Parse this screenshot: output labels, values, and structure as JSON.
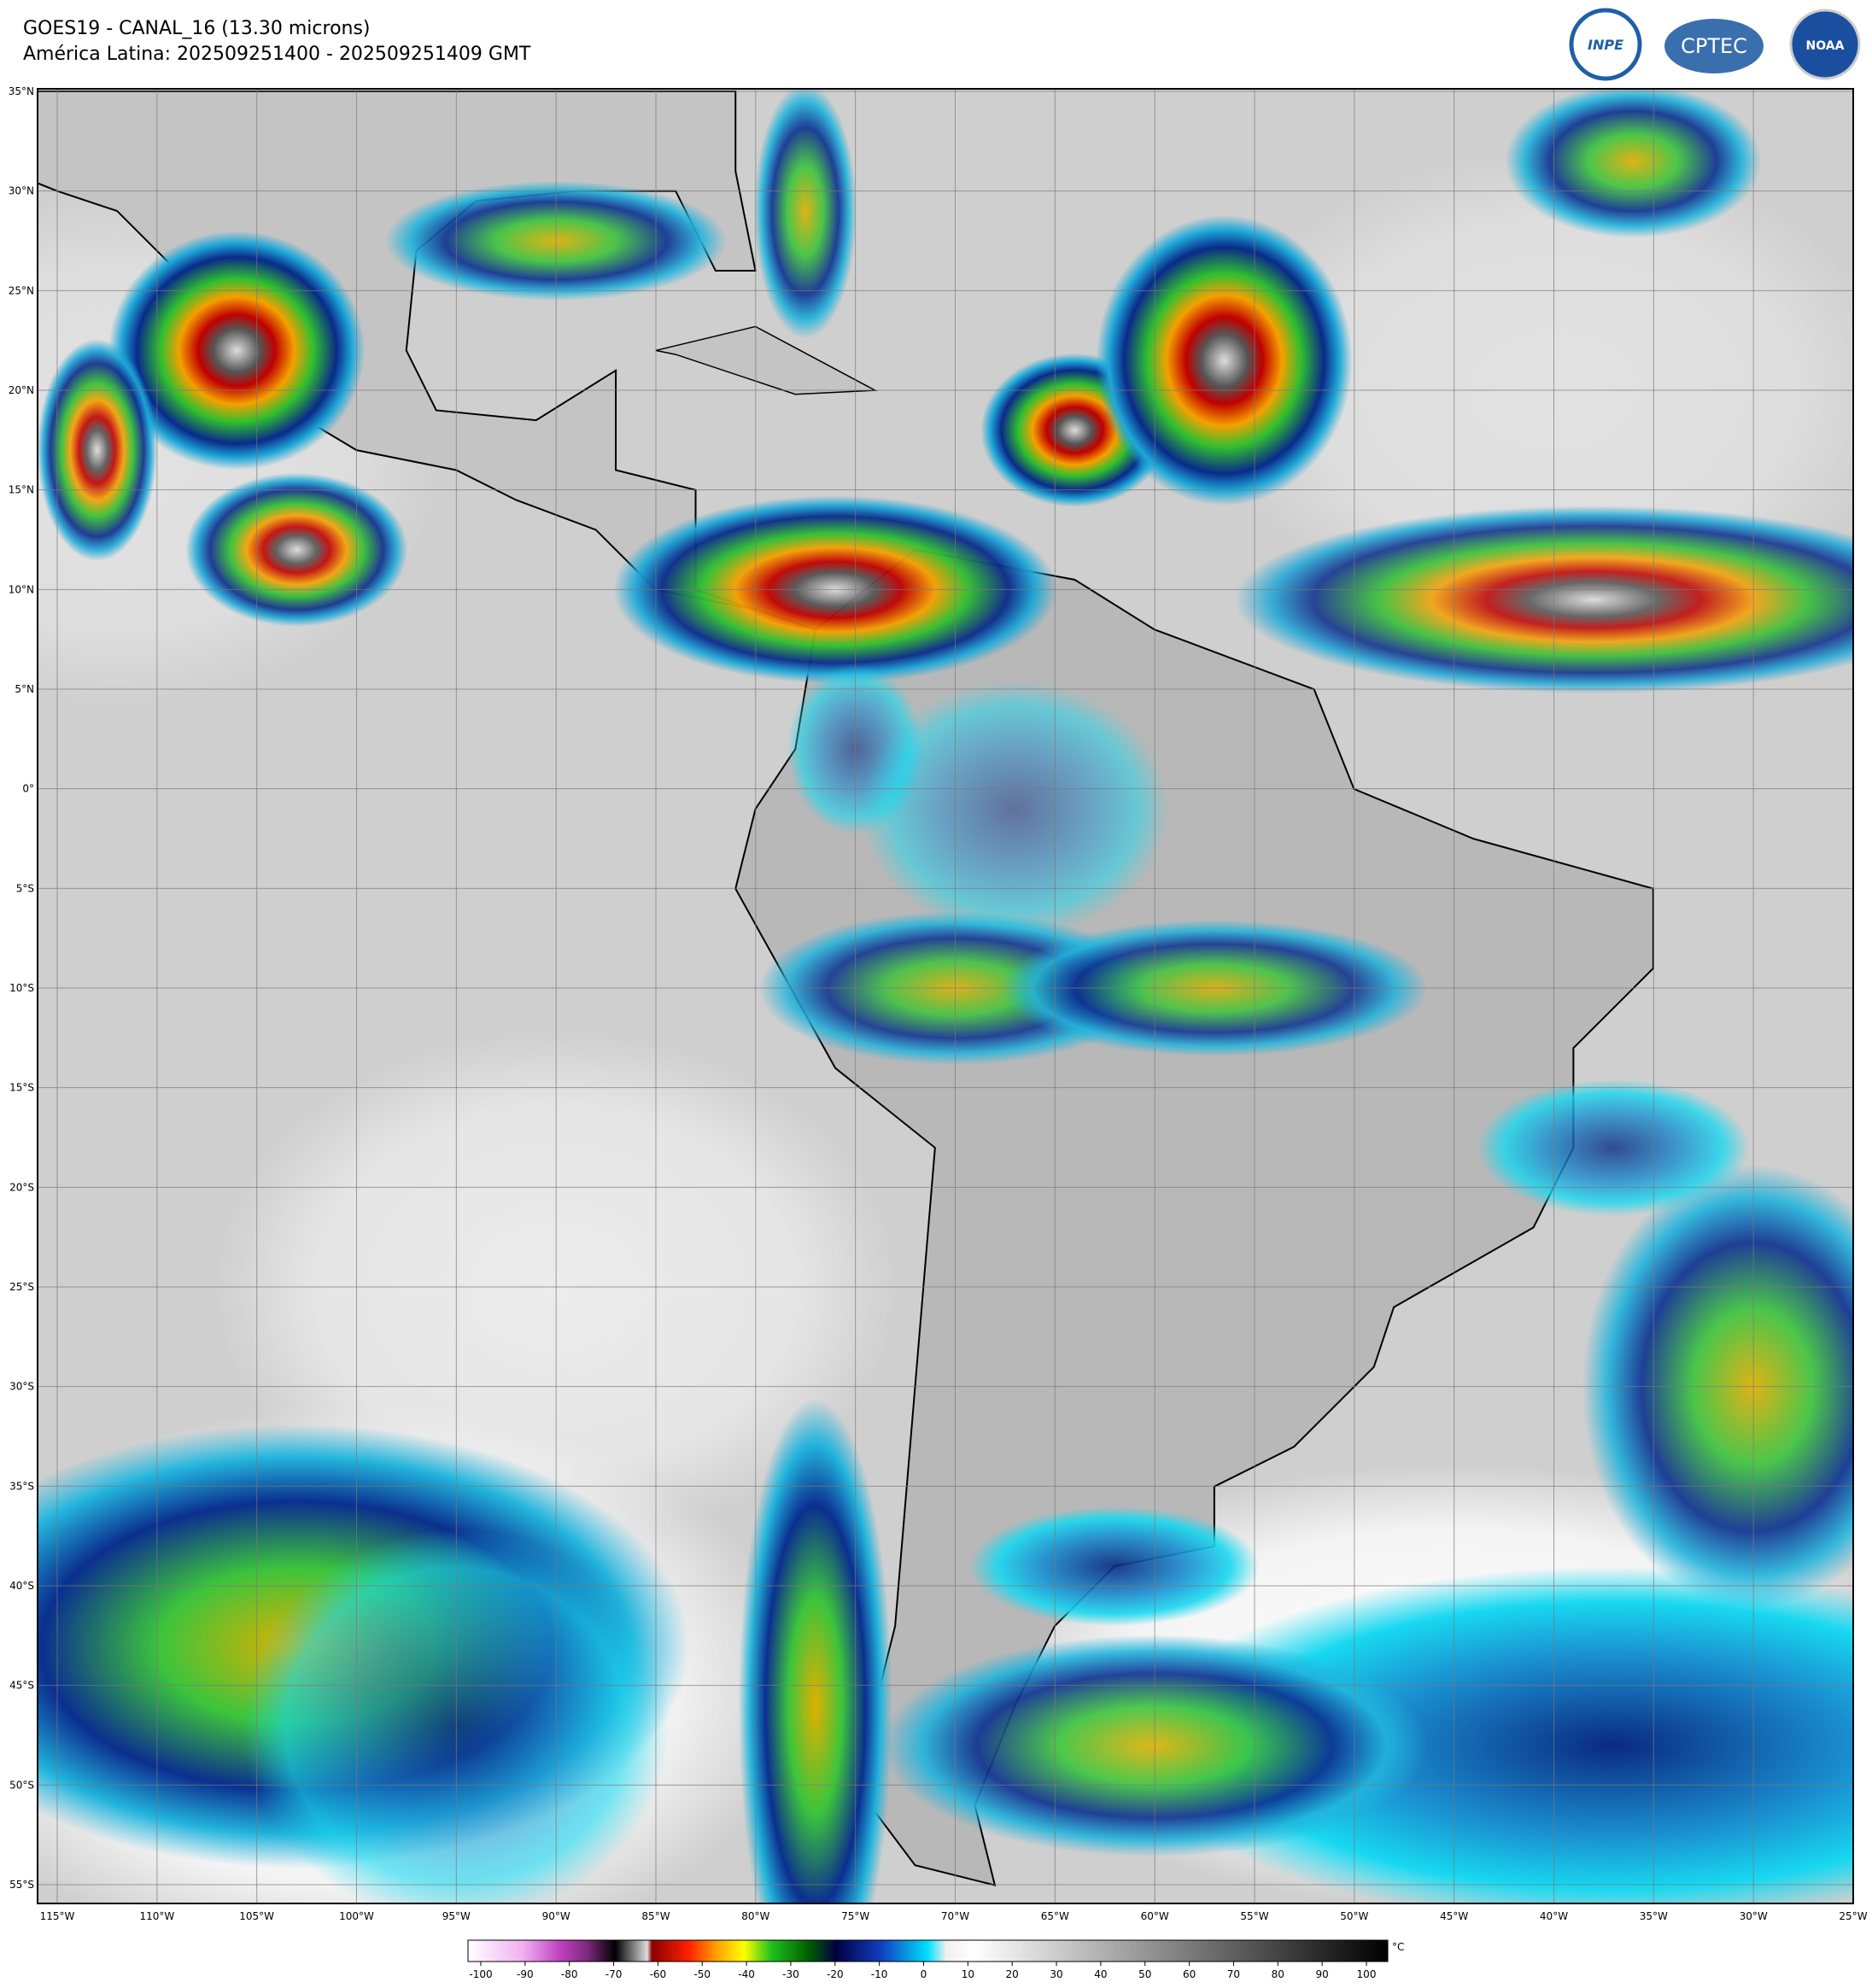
{
  "header": {
    "title": "GOES19 - CANAL_16 (13.30 microns)",
    "subtitle": "América Latina: 202509251400 - 202509251409 GMT",
    "logos": [
      "INPE",
      "CPTEC",
      "NOAA"
    ]
  },
  "map": {
    "lat_labels": [
      "35°N",
      "30°N",
      "25°N",
      "20°N",
      "15°N",
      "10°N",
      "5°N",
      "0°",
      "5°S",
      "10°S",
      "15°S",
      "20°S",
      "25°S",
      "30°S",
      "35°S",
      "40°S",
      "45°S",
      "50°S",
      "55°S"
    ],
    "lon_labels": [
      "115°W",
      "110°W",
      "105°W",
      "100°W",
      "95°W",
      "90°W",
      "85°W",
      "80°W",
      "75°W",
      "70°W",
      "65°W",
      "60°W",
      "55°W",
      "50°W",
      "45°W",
      "40°W",
      "35°W",
      "30°W",
      "25°W"
    ]
  },
  "colorbar": {
    "ticks": [
      -100,
      -90,
      -80,
      -70,
      -60,
      -50,
      -40,
      -30,
      -20,
      -10,
      0,
      10,
      20,
      30,
      40,
      50,
      60,
      70,
      80,
      90,
      100
    ],
    "unit": "°C"
  }
}
